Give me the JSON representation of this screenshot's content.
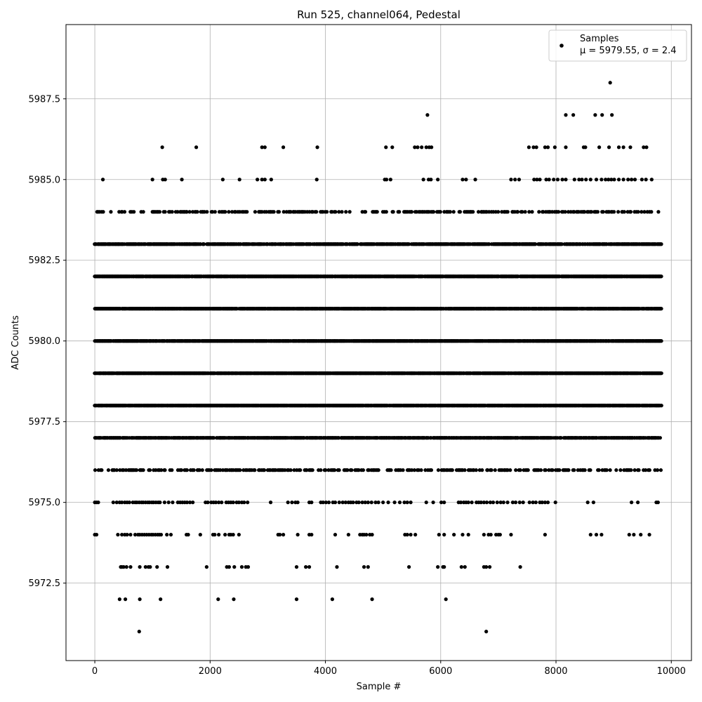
{
  "chart_data": {
    "type": "scatter",
    "title": "Run 525, channel064, Pedestal",
    "xlabel": "Sample #",
    "ylabel": "ADC Counts",
    "xlim": [
      -500,
      10350
    ],
    "ylim": [
      5970.1,
      5989.8
    ],
    "xticks": [
      0,
      2000,
      4000,
      6000,
      8000,
      10000
    ],
    "yticks": [
      5972.5,
      5975.0,
      5977.5,
      5980.0,
      5982.5,
      5985.0,
      5987.5
    ],
    "xtick_labels": [
      "0",
      "2000",
      "4000",
      "6000",
      "8000",
      "10000"
    ],
    "ytick_labels": [
      "5972.5",
      "5975.0",
      "5977.5",
      "5980.0",
      "5982.5",
      "5985.0",
      "5987.5"
    ],
    "grid": true,
    "legend": {
      "placement": "top-right",
      "entry_name": "Samples",
      "stats_label": "μ = 5979.55, σ = 2.4"
    },
    "marker_color": "#000000",
    "x_range": [
      0,
      9830
    ],
    "series": [
      {
        "name": "Samples",
        "levels": [
          {
            "y": 5971,
            "x": [
              770,
              6790
            ]
          },
          {
            "y": 5972,
            "x": [
              430,
              530,
              780,
              1140,
              2140,
              2410,
              3500,
              4120,
              4810,
              6090
            ]
          },
          {
            "y": 5973,
            "x": [
              450,
              470,
              500,
              550,
              620,
              780,
              880,
              930,
              960,
              1080,
              1260,
              1940,
              2290,
              2330,
              2420,
              2550,
              2620,
              2660,
              3500,
              3660,
              3720,
              4200,
              4670,
              4740,
              5450,
              5950,
              6040,
              6060,
              6360,
              6420,
              6750,
              6790,
              6850,
              7380
            ]
          },
          {
            "y": 5974,
            "x": [
              0,
              30,
              400,
              470,
              520,
              560,
              620,
              700,
              750,
              780,
              820,
              860,
              900,
              940,
              980,
              1010,
              1050,
              1090,
              1120,
              1150,
              1250,
              1320,
              1590,
              1620,
              1830,
              2050,
              2080,
              2150,
              2260,
              2330,
              2360,
              2400,
              2500,
              3180,
              3210,
              3270,
              3520,
              3720,
              3760,
              4170,
              4400,
              4600,
              4640,
              4670,
              4710,
              4770,
              4810,
              5380,
              5420,
              5480,
              5560,
              5970,
              6060,
              6230,
              6380,
              6480,
              6750,
              6830,
              6870,
              6960,
              7000,
              7030,
              7220,
              7810,
              8600,
              8700,
              8790,
              9270,
              9350,
              9470,
              9620
            ]
          },
          {
            "y": 5975,
            "x": [
              0,
              30,
              60,
              320,
              380,
              430,
              470,
              520,
              560,
              600,
              660,
              700,
              730,
              770,
              810,
              840,
              880,
              920,
              950,
              990,
              1020,
              1060,
              1100,
              1130,
              1210,
              1280,
              1350,
              1440,
              1480,
              1520,
              1560,
              1600,
              1650,
              1700,
              1920,
              1960,
              2020,
              2060,
              2100,
              2150,
              2200,
              2280,
              2320,
              2360,
              2400,
              2460,
              2500,
              2550,
              2590,
              2650,
              3050,
              3350,
              3420,
              3480,
              3520,
              3720,
              3760,
              3920,
              3960,
              4010,
              4060,
              4130,
              4170,
              4240,
              4300,
              4350,
              4400,
              4440,
              4480,
              4540,
              4580,
              4640,
              4690,
              4740,
              4800,
              4870,
              4920,
              5000,
              5090,
              5200,
              5290,
              5370,
              5420,
              5480,
              5750,
              5870,
              6010,
              6060,
              6310,
              6350,
              6400,
              6440,
              6480,
              6540,
              6620,
              6660,
              6700,
              6750,
              6800,
              6860,
              6910,
              6980,
              7040,
              7090,
              7160,
              7250,
              7300,
              7370,
              7430,
              7540,
              7600,
              7650,
              7720,
              7760,
              7810,
              7860,
              7990,
              8550,
              8650,
              9310,
              9420,
              9740,
              9770
            ]
          }
        ],
        "dense_levels": [
          5976,
          5977,
          5978,
          5979,
          5980,
          5981,
          5982,
          5983,
          5984
        ],
        "sparse_levels": [
          {
            "y": 5985,
            "x": [
              140,
              1000,
              1180,
              1220,
              1510,
              2220,
              2510,
              2820,
              2900,
              2950,
              3060,
              3850,
              5030,
              5060,
              5130,
              5700,
              5790,
              5830,
              5950,
              6380,
              6440,
              6600,
              7220,
              7290,
              7360,
              7620,
              7670,
              7720,
              7830,
              7880,
              7960,
              8030,
              8110,
              8170,
              8320,
              8400,
              8450,
              8520,
              8600,
              8700,
              8790,
              8860,
              8910,
              8960,
              9010,
              9090,
              9170,
              9250,
              9310,
              9370,
              9490,
              9560,
              9660
            ]
          },
          {
            "y": 5986,
            "x": [
              1170,
              1760,
              2900,
              2950,
              3270,
              3860,
              5050,
              5160,
              5550,
              5600,
              5670,
              5750,
              5800,
              5840,
              7530,
              7610,
              7660,
              7810,
              7860,
              7980,
              8170,
              8480,
              8510,
              8750,
              8920,
              9090,
              9170,
              9290,
              9520,
              9570
            ]
          },
          {
            "y": 5987,
            "x": [
              5770,
              8170,
              8300,
              8680,
              8800,
              8970
            ]
          },
          {
            "y": 5988,
            "x": [
              8940
            ]
          }
        ]
      }
    ]
  }
}
